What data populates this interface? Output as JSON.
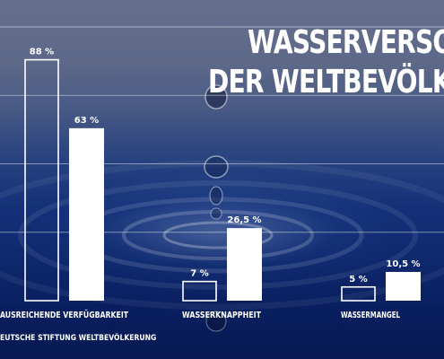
{
  "title": {
    "line1": "WASSERVERSOR",
    "line2": "DER WELTBEVÖLKE"
  },
  "source": "EUTSCHE STIFTUNG WELTBEVÖLKERUNG",
  "colors": {
    "bar_fill": "#ffffff",
    "bar_outline": "#ffffff",
    "text": "#ffffff"
  },
  "chart_data": {
    "type": "bar",
    "categories": [
      "AUSREICHENDE VERFÜGBARKEIT",
      "WASSERKNAPPHEIT",
      "WASSERMANGEL"
    ],
    "series": [
      {
        "style": "outline",
        "values": [
          88,
          7,
          5
        ],
        "labels": [
          "88 %",
          "7 %",
          "5 %"
        ]
      },
      {
        "style": "filled",
        "values": [
          63,
          26.5,
          10.5
        ],
        "labels": [
          "63 %",
          "26,5 %",
          "10,5 %"
        ]
      }
    ],
    "ylim": [
      0,
      100
    ],
    "grid": true
  }
}
